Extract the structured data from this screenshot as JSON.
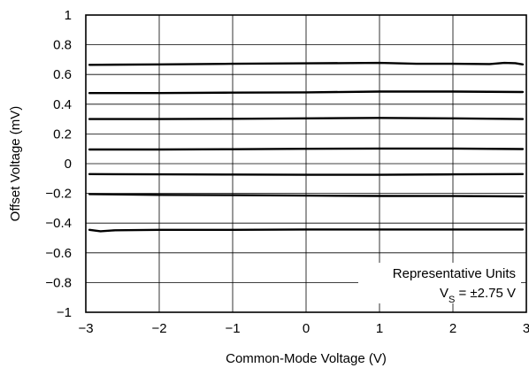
{
  "chart_data": {
    "type": "line",
    "title": "",
    "xlabel": "Common-Mode Voltage (V)",
    "ylabel": "Offset Voltage (mV)",
    "xlim": [
      -3,
      3
    ],
    "ylim": [
      -1,
      1
    ],
    "x_ticks": [
      -3,
      -2,
      -1,
      0,
      1,
      2,
      3
    ],
    "x_tick_labels": [
      "−3",
      "−2",
      "−1",
      "0",
      "1",
      "2",
      "3"
    ],
    "y_ticks": [
      -1,
      -0.8,
      -0.6,
      -0.4,
      -0.2,
      0,
      0.2,
      0.4,
      0.6,
      0.8,
      1
    ],
    "y_tick_labels": [
      "−1",
      "−0.8",
      "−0.6",
      "−0.4",
      "−0.2",
      "0",
      "0.2",
      "0.4",
      "0.6",
      "0.8",
      "1"
    ],
    "grid": true,
    "legend": "none",
    "annotations": {
      "line1": "Representative Units",
      "vs_prefix": "V",
      "vs_subscript": "S",
      "vs_suffix": " = ±2.75 V",
      "placement": "bottom-right"
    },
    "line_color": "#000000",
    "series": [
      {
        "x": [
          -2.95,
          -2,
          -1,
          0,
          1,
          1.5,
          2,
          2.5,
          2.7,
          2.85,
          2.95
        ],
        "values": [
          0.665,
          0.668,
          0.672,
          0.675,
          0.678,
          0.672,
          0.672,
          0.67,
          0.678,
          0.676,
          0.668
        ]
      },
      {
        "x": [
          -2.95,
          -2,
          -1,
          0,
          1,
          2,
          2.95
        ],
        "values": [
          0.475,
          0.475,
          0.478,
          0.48,
          0.485,
          0.485,
          0.482
        ]
      },
      {
        "x": [
          -2.95,
          -2,
          -1,
          0,
          1,
          2,
          2.95
        ],
        "values": [
          0.3,
          0.3,
          0.302,
          0.305,
          0.308,
          0.305,
          0.3
        ]
      },
      {
        "x": [
          -2.95,
          -2,
          -1,
          0,
          1,
          2,
          2.95
        ],
        "values": [
          0.095,
          0.095,
          0.097,
          0.1,
          0.102,
          0.102,
          0.098
        ]
      },
      {
        "x": [
          -2.95,
          -2,
          -1,
          0,
          1,
          2,
          2.95
        ],
        "values": [
          -0.07,
          -0.072,
          -0.073,
          -0.075,
          -0.075,
          -0.072,
          -0.07
        ]
      },
      {
        "x": [
          -2.95,
          -2,
          -1,
          0,
          1,
          2,
          2.95
        ],
        "values": [
          -0.205,
          -0.21,
          -0.212,
          -0.215,
          -0.217,
          -0.218,
          -0.22
        ]
      },
      {
        "x": [
          -2.95,
          -2.8,
          -2.6,
          -2,
          -1,
          0,
          1,
          2,
          2.95
        ],
        "values": [
          -0.445,
          -0.455,
          -0.448,
          -0.445,
          -0.445,
          -0.443,
          -0.443,
          -0.443,
          -0.443
        ]
      }
    ]
  }
}
